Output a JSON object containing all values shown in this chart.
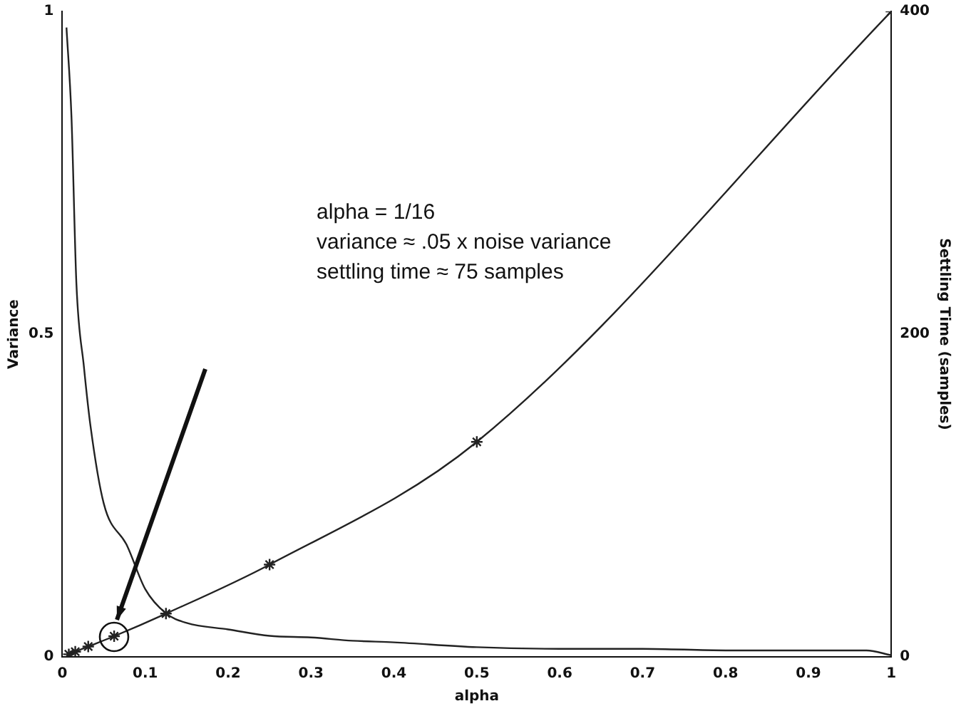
{
  "chart_data": {
    "type": "line",
    "xlabel": "alpha",
    "ylabel": "Variance",
    "y2label": "Settling Time (samples)",
    "xlim": [
      0,
      1
    ],
    "xticks": [
      0,
      0.1,
      0.2,
      0.3,
      0.4,
      0.5,
      0.6,
      0.7,
      0.8,
      0.9,
      1
    ],
    "ylim": [
      0,
      1
    ],
    "yticks": [
      0,
      0.5,
      1
    ],
    "y2lim": [
      0,
      400
    ],
    "y2ticks": [
      0,
      200,
      400
    ],
    "series": [
      {
        "color": "#222222",
        "marker": "cross",
        "x": [
          0.0078,
          0.0156,
          0.03125,
          0.0625,
          0.125,
          0.25,
          0.5,
          1
        ],
        "values": [
          0.004,
          0.008,
          0.016,
          0.032,
          0.067,
          0.143,
          0.333,
          1
        ]
      },
      {
        "color": "#222222",
        "marker": "none",
        "axis": "y2",
        "x": [
          0.005,
          0.011,
          0.017,
          0.026,
          0.034,
          0.05,
          0.078,
          0.1,
          0.125,
          0.15,
          0.2,
          0.25,
          0.3,
          0.35,
          0.4,
          0.5,
          0.6,
          0.7,
          0.8,
          0.9,
          0.97,
          1
        ],
        "values": [
          390,
          335,
          231,
          180,
          143,
          95,
          69,
          42,
          27,
          21,
          17,
          13,
          12,
          10,
          9,
          6,
          5,
          5,
          4,
          4,
          4,
          1
        ]
      }
    ],
    "annotations": [
      "alpha = 1/16\nvariance ≈ .05 x noise variance\nsettling time ≈ 75 samples"
    ]
  }
}
